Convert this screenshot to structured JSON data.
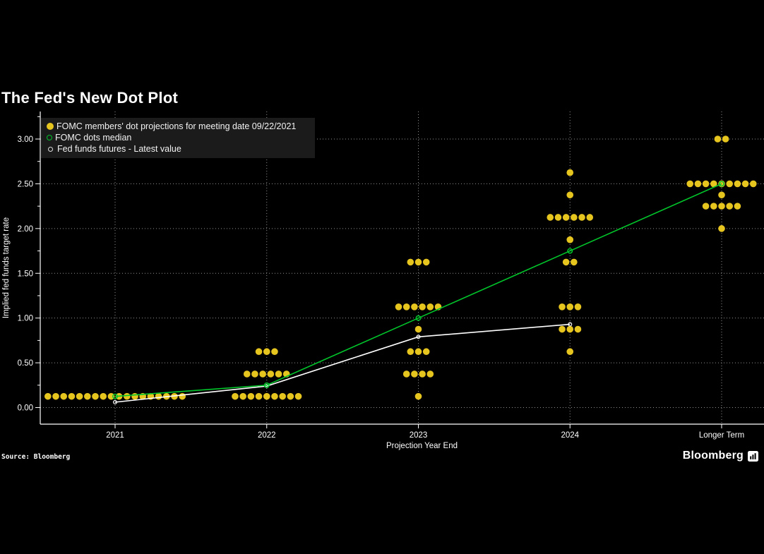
{
  "title": "The Fed's New Dot Plot",
  "legend": {
    "items": [
      {
        "label": "FOMC members' dot projections for meeting date 09/22/2021",
        "marker": "filled-dot"
      },
      {
        "label": "FOMC dots median",
        "marker": "open-circle-green"
      },
      {
        "label": "Fed funds futures - Latest value",
        "marker": "open-circle-white"
      }
    ]
  },
  "source": "Source: Bloomberg",
  "brand": "Bloomberg",
  "colors": {
    "background": "#000000",
    "dots": "#E7C51F",
    "median": "#00C52B",
    "futures": "#FFFFFF",
    "grid": "#8F8F8F",
    "axis": "#FFFFFF",
    "text": "#FFFFFF",
    "legend_bg": "#1B1B1B"
  },
  "chart_data": {
    "type": "scatter",
    "title": "The Fed's New Dot Plot",
    "xlabel": "Projection Year End",
    "ylabel": "Implied fed funds target rate",
    "categories": [
      "2021",
      "2022",
      "2023",
      "2024",
      "Longer Term"
    ],
    "yticks": [
      "0.00",
      "0.50",
      "1.00",
      "1.50",
      "2.00",
      "2.50",
      "3.00"
    ],
    "ylim": [
      -0.19,
      3.32
    ],
    "grid": "dotted",
    "legend_position": "top-left",
    "dot_projections": [
      {
        "category": "2021",
        "distribution": [
          {
            "rate": 0.125,
            "members": 18
          }
        ]
      },
      {
        "category": "2022",
        "distribution": [
          {
            "rate": 0.125,
            "members": 9
          },
          {
            "rate": 0.375,
            "members": 6
          },
          {
            "rate": 0.625,
            "members": 3
          }
        ]
      },
      {
        "category": "2023",
        "distribution": [
          {
            "rate": 0.125,
            "members": 1
          },
          {
            "rate": 0.375,
            "members": 4
          },
          {
            "rate": 0.625,
            "members": 3
          },
          {
            "rate": 0.875,
            "members": 1
          },
          {
            "rate": 1.125,
            "members": 6
          },
          {
            "rate": 1.625,
            "members": 3
          }
        ]
      },
      {
        "category": "2024",
        "distribution": [
          {
            "rate": 0.625,
            "members": 1
          },
          {
            "rate": 0.875,
            "members": 3
          },
          {
            "rate": 1.125,
            "members": 3
          },
          {
            "rate": 1.625,
            "members": 2
          },
          {
            "rate": 1.875,
            "members": 1
          },
          {
            "rate": 2.125,
            "members": 6
          },
          {
            "rate": 2.375,
            "members": 1
          },
          {
            "rate": 2.625,
            "members": 1
          }
        ]
      },
      {
        "category": "Longer Term",
        "distribution": [
          {
            "rate": 2.0,
            "members": 1
          },
          {
            "rate": 2.25,
            "members": 5
          },
          {
            "rate": 2.375,
            "members": 1
          },
          {
            "rate": 2.5,
            "members": 9
          },
          {
            "rate": 3.0,
            "members": 2
          }
        ]
      }
    ],
    "series": [
      {
        "name": "FOMC dots median",
        "x": [
          "2021",
          "2022",
          "2023",
          "2024",
          "Longer Term"
        ],
        "values": [
          0.125,
          0.25,
          1.0,
          1.75,
          2.5
        ]
      },
      {
        "name": "Fed funds futures - Latest value",
        "x": [
          "2021",
          "2022",
          "2023",
          "2024"
        ],
        "values": [
          0.06,
          0.24,
          0.79,
          0.93
        ]
      }
    ]
  }
}
